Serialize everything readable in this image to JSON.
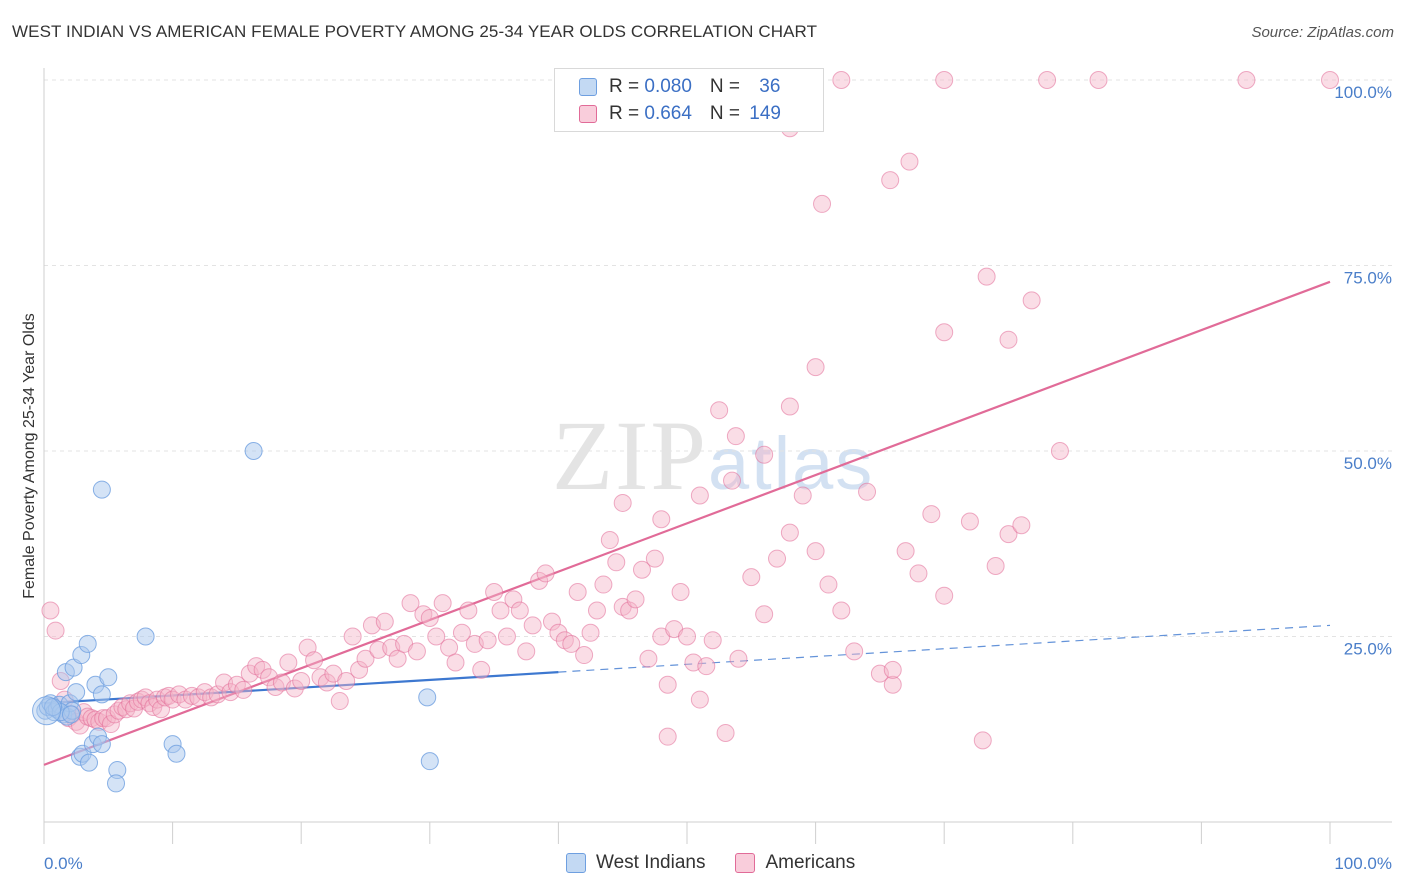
{
  "title": "WEST INDIAN VS AMERICAN FEMALE POVERTY AMONG 25-34 YEAR OLDS CORRELATION CHART",
  "source": "Source: ZipAtlas.com",
  "watermark": {
    "zip": "ZIP",
    "atlas": "atlas"
  },
  "legend": {
    "rows": [
      {
        "r_label": "R = ",
        "r_value": "0.080",
        "n_label": "N = ",
        "n_value": "36",
        "color": "#a9c8ee"
      },
      {
        "r_label": "R = ",
        "r_value": "0.664",
        "n_label": "N = ",
        "n_value": "149",
        "color": "#f5b3c8"
      }
    ]
  },
  "bottom_legend": [
    {
      "label": "West Indians",
      "color": "#a9c8ee"
    },
    {
      "label": "Americans",
      "color": "#f5b3c8"
    }
  ],
  "chart_data": {
    "type": "scatter",
    "title": "WEST INDIAN VS AMERICAN FEMALE POVERTY AMONG 25-34 YEAR OLDS CORRELATION CHART",
    "xlabel": "",
    "ylabel": "Female Poverty Among 25-34 Year Olds",
    "xlim": [
      0,
      100
    ],
    "ylim": [
      0,
      100
    ],
    "x_tick_labels": [
      "0.0%",
      "100.0%"
    ],
    "y_tick_labels": [
      "25.0%",
      "50.0%",
      "75.0%",
      "100.0%"
    ],
    "y_ticks": [
      25,
      50,
      75,
      100
    ],
    "grid": true,
    "series": [
      {
        "name": "West Indians",
        "color": "#6e9fe0",
        "fill": "#a9c8ee",
        "trend": {
          "x": [
            0,
            40,
            100
          ],
          "y": [
            16.0,
            20.2,
            26.5
          ],
          "solid_to": 40
        },
        "points": [
          [
            0.1,
            15.0
          ],
          [
            0.3,
            15.5
          ],
          [
            0.5,
            16.0
          ],
          [
            0.8,
            14.8
          ],
          [
            1.0,
            15.2
          ],
          [
            1.2,
            15.8
          ],
          [
            1.5,
            14.5
          ],
          [
            1.8,
            14.2
          ],
          [
            2.0,
            16.0
          ],
          [
            2.2,
            15.0
          ],
          [
            2.5,
            17.5
          ],
          [
            1.7,
            20.2
          ],
          [
            2.3,
            20.8
          ],
          [
            2.8,
            8.8
          ],
          [
            3.0,
            9.2
          ],
          [
            3.5,
            8.0
          ],
          [
            2.9,
            22.5
          ],
          [
            3.4,
            24.0
          ],
          [
            4.0,
            18.5
          ],
          [
            4.5,
            17.2
          ],
          [
            5.0,
            19.5
          ],
          [
            3.8,
            10.5
          ],
          [
            4.2,
            11.5
          ],
          [
            4.5,
            10.5
          ],
          [
            5.7,
            7.0
          ],
          [
            5.6,
            5.2
          ],
          [
            7.9,
            25.0
          ],
          [
            10.0,
            10.5
          ],
          [
            10.3,
            9.2
          ],
          [
            4.5,
            44.8
          ],
          [
            16.3,
            50.0
          ],
          [
            29.8,
            16.8
          ],
          [
            30.0,
            8.2
          ],
          [
            1.3,
            14.8
          ],
          [
            0.7,
            15.5
          ],
          [
            2.1,
            14.5
          ]
        ]
      },
      {
        "name": "Americans",
        "color": "#e16b98",
        "fill": "#f5b3c8",
        "trend": {
          "x": [
            0,
            100
          ],
          "y": [
            7.7,
            72.8
          ],
          "solid_to": 100
        },
        "points": [
          [
            0.5,
            28.5
          ],
          [
            0.9,
            25.8
          ],
          [
            1.3,
            19.0
          ],
          [
            1.6,
            16.5
          ],
          [
            1.9,
            14.0
          ],
          [
            2.2,
            14.5
          ],
          [
            2.5,
            13.5
          ],
          [
            2.8,
            13.0
          ],
          [
            3.1,
            14.8
          ],
          [
            3.4,
            14.2
          ],
          [
            3.7,
            14.0
          ],
          [
            4.0,
            13.8
          ],
          [
            4.3,
            13.5
          ],
          [
            4.6,
            14.0
          ],
          [
            4.9,
            14.0
          ],
          [
            5.2,
            13.2
          ],
          [
            5.5,
            14.5
          ],
          [
            5.8,
            15.0
          ],
          [
            6.1,
            15.5
          ],
          [
            6.4,
            15.2
          ],
          [
            6.7,
            16.0
          ],
          [
            7.0,
            15.3
          ],
          [
            7.3,
            16.2
          ],
          [
            7.6,
            16.5
          ],
          [
            7.9,
            16.8
          ],
          [
            8.2,
            16.0
          ],
          [
            8.5,
            15.5
          ],
          [
            8.8,
            16.5
          ],
          [
            9.1,
            15.2
          ],
          [
            9.4,
            16.8
          ],
          [
            9.7,
            17.0
          ],
          [
            10.0,
            16.5
          ],
          [
            10.5,
            17.2
          ],
          [
            11.0,
            16.5
          ],
          [
            11.5,
            17.0
          ],
          [
            12.0,
            16.8
          ],
          [
            12.5,
            17.5
          ],
          [
            13.0,
            16.8
          ],
          [
            13.5,
            17.2
          ],
          [
            14.0,
            18.8
          ],
          [
            14.5,
            17.5
          ],
          [
            15.0,
            18.5
          ],
          [
            15.5,
            17.8
          ],
          [
            16.0,
            20.0
          ],
          [
            16.5,
            21.0
          ],
          [
            17.0,
            20.5
          ],
          [
            17.5,
            19.5
          ],
          [
            18.0,
            18.2
          ],
          [
            18.5,
            18.8
          ],
          [
            19.0,
            21.5
          ],
          [
            19.5,
            18.0
          ],
          [
            20.0,
            19.0
          ],
          [
            20.5,
            23.5
          ],
          [
            21.0,
            21.8
          ],
          [
            21.5,
            19.5
          ],
          [
            22.0,
            18.8
          ],
          [
            22.5,
            20.0
          ],
          [
            23.0,
            16.3
          ],
          [
            23.5,
            19.0
          ],
          [
            24.0,
            25.0
          ],
          [
            24.5,
            20.5
          ],
          [
            25.0,
            22.0
          ],
          [
            25.5,
            26.5
          ],
          [
            26.0,
            23.2
          ],
          [
            26.5,
            27.0
          ],
          [
            27.0,
            23.5
          ],
          [
            27.5,
            22.0
          ],
          [
            28.0,
            24.0
          ],
          [
            28.5,
            29.5
          ],
          [
            29.0,
            23.0
          ],
          [
            29.5,
            28.0
          ],
          [
            30.0,
            27.5
          ],
          [
            30.5,
            25.0
          ],
          [
            31.0,
            29.5
          ],
          [
            31.5,
            23.5
          ],
          [
            32.0,
            21.5
          ],
          [
            32.5,
            25.5
          ],
          [
            33.0,
            28.5
          ],
          [
            33.5,
            24.0
          ],
          [
            34.0,
            20.5
          ],
          [
            34.5,
            24.5
          ],
          [
            35.0,
            31.0
          ],
          [
            35.5,
            28.5
          ],
          [
            36.0,
            25.0
          ],
          [
            36.5,
            30.0
          ],
          [
            37.0,
            28.5
          ],
          [
            37.5,
            23.0
          ],
          [
            38.0,
            26.5
          ],
          [
            38.5,
            32.5
          ],
          [
            39.0,
            33.5
          ],
          [
            39.5,
            27.0
          ],
          [
            40.0,
            25.5
          ],
          [
            40.5,
            24.5
          ],
          [
            41.0,
            24.0
          ],
          [
            41.5,
            31.0
          ],
          [
            42.0,
            22.5
          ],
          [
            42.5,
            25.5
          ],
          [
            43.0,
            28.5
          ],
          [
            43.5,
            32.0
          ],
          [
            44.0,
            38.0
          ],
          [
            44.5,
            35.0
          ],
          [
            45.0,
            29.0
          ],
          [
            45.5,
            28.5
          ],
          [
            46.0,
            30.0
          ],
          [
            46.5,
            34.0
          ],
          [
            47.0,
            22.0
          ],
          [
            47.5,
            35.5
          ],
          [
            48.0,
            25.0
          ],
          [
            48.5,
            18.5
          ],
          [
            49.0,
            26.0
          ],
          [
            49.5,
            31.0
          ],
          [
            50.0,
            25.0
          ],
          [
            50.5,
            21.5
          ],
          [
            51.0,
            16.5
          ],
          [
            51.5,
            21.0
          ],
          [
            52.0,
            24.5
          ],
          [
            53.0,
            12.0
          ],
          [
            54.0,
            22.0
          ],
          [
            55.0,
            33.0
          ],
          [
            56.0,
            28.0
          ],
          [
            57.0,
            35.5
          ],
          [
            58.0,
            39.0
          ],
          [
            59.0,
            44.0
          ],
          [
            60.0,
            36.5
          ],
          [
            61.0,
            32.0
          ],
          [
            62.0,
            28.5
          ],
          [
            63.0,
            23.0
          ],
          [
            64.0,
            44.5
          ],
          [
            65.0,
            20.0
          ],
          [
            66.0,
            18.5
          ],
          [
            67.0,
            36.5
          ],
          [
            68.0,
            33.5
          ],
          [
            70.0,
            30.5
          ],
          [
            72.0,
            40.5
          ],
          [
            73.0,
            11.0
          ],
          [
            74.0,
            34.5
          ],
          [
            75.0,
            38.8
          ],
          [
            76.0,
            40.0
          ],
          [
            48.5,
            11.5
          ],
          [
            48.0,
            40.8
          ],
          [
            45.0,
            43.0
          ],
          [
            51.0,
            44.0
          ],
          [
            53.5,
            46.0
          ],
          [
            56.0,
            49.5
          ],
          [
            66.0,
            20.5
          ],
          [
            69.0,
            41.5
          ],
          [
            70.0,
            66.0
          ]
        ],
        "extra_points": [
          [
            58.0,
            93.5
          ],
          [
            62.0,
            100.0
          ],
          [
            70.0,
            100.0
          ],
          [
            78.0,
            100.0
          ],
          [
            82.0,
            100.0
          ],
          [
            93.5,
            100.0
          ],
          [
            100.0,
            100.0
          ],
          [
            60.5,
            83.3
          ],
          [
            65.8,
            86.5
          ],
          [
            67.3,
            89.0
          ],
          [
            73.3,
            73.5
          ],
          [
            76.8,
            70.3
          ],
          [
            75.0,
            65.0
          ],
          [
            60.0,
            61.3
          ],
          [
            58.0,
            56.0
          ],
          [
            52.5,
            55.5
          ],
          [
            53.8,
            52.0
          ],
          [
            79.0,
            50.0
          ]
        ]
      }
    ]
  }
}
